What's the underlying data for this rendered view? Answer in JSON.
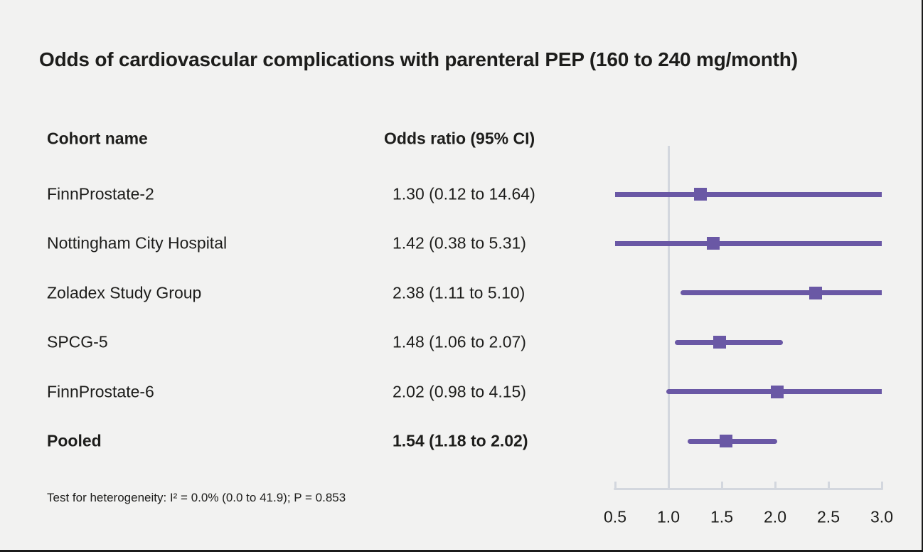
{
  "title": "Odds of cardiovascular complications with parenteral PEP (160 to 240 mg/month)",
  "table": {
    "cohort_header": "Cohort name",
    "odds_header": "Odds ratio (95% CI)"
  },
  "footnote": "Test for heterogeneity: I² = 0.0% (0.0 to 41.9); P = 0.853",
  "colors": {
    "accent_purple": "#6a58a5",
    "axis_gray": "#d3d7de",
    "text": "#1d1d1b",
    "background": "#f2f2f1",
    "border": "#1b1b1b"
  },
  "chart_data": {
    "type": "forest",
    "title": "Odds of cardiovascular complications with parenteral PEP (160 to 240 mg/month)",
    "x_axis": {
      "ticks": [
        0.5,
        1.0,
        1.5,
        2.0,
        2.5,
        3.0
      ],
      "tick_labels": [
        "0.5",
        "1.0",
        "1.5",
        "2.0",
        "2.5",
        "3.0"
      ],
      "xlim": [
        0.5,
        3.0
      ],
      "reference_line": 1.0
    },
    "rows": [
      {
        "label": "FinnProstate-2",
        "or": 1.3,
        "ci_low": 0.12,
        "ci_high": 14.64,
        "or_text": "1.30 (0.12 to 14.64)",
        "bold": false
      },
      {
        "label": "Nottingham City Hospital",
        "or": 1.42,
        "ci_low": 0.38,
        "ci_high": 5.31,
        "or_text": "1.42 (0.38 to 5.31)",
        "bold": false
      },
      {
        "label": "Zoladex Study Group",
        "or": 2.38,
        "ci_low": 1.11,
        "ci_high": 5.1,
        "or_text": "2.38 (1.11 to 5.10)",
        "bold": false
      },
      {
        "label": "SPCG-5",
        "or": 1.48,
        "ci_low": 1.06,
        "ci_high": 2.07,
        "or_text": "1.48 (1.06 to 2.07)",
        "bold": false
      },
      {
        "label": "FinnProstate-6",
        "or": 2.02,
        "ci_low": 0.98,
        "ci_high": 4.15,
        "or_text": "2.02 (0.98 to 4.15)",
        "bold": false
      },
      {
        "label": "Pooled",
        "or": 1.54,
        "ci_low": 1.18,
        "ci_high": 2.02,
        "or_text": "1.54 (1.18 to 2.02)",
        "bold": true
      }
    ],
    "heterogeneity_note": "Test for heterogeneity: I² = 0.0% (0.0 to 41.9); P = 0.853"
  }
}
